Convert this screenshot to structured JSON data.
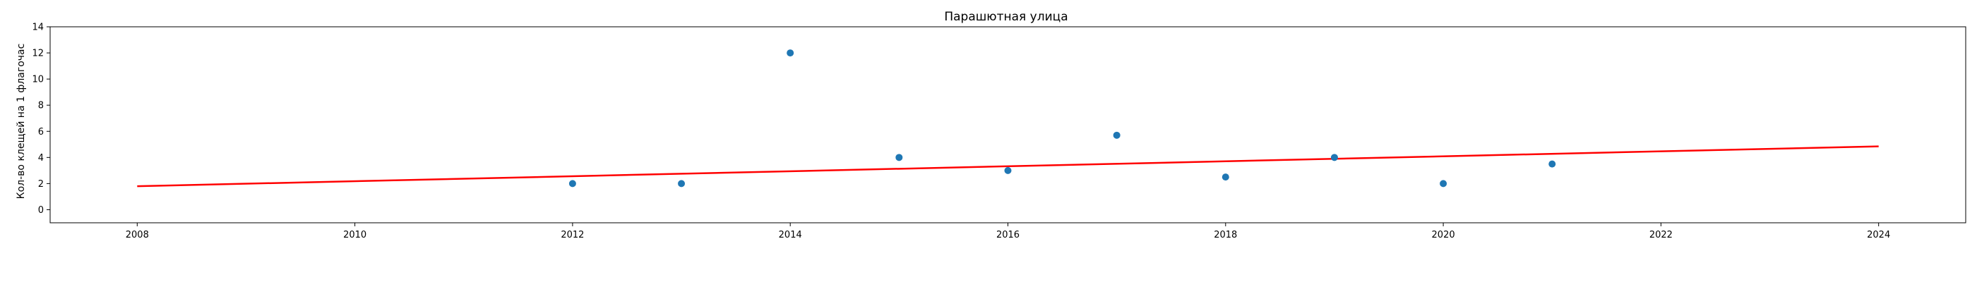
{
  "chart_data": {
    "type": "scatter",
    "title": "Парашютная улица",
    "xlabel": "",
    "ylabel": "Кол-во клещей на 1 флагочас",
    "xlim": [
      2007.2,
      2024.8
    ],
    "ylim": [
      -1,
      14
    ],
    "xticks": [
      2008,
      2010,
      2012,
      2014,
      2016,
      2018,
      2020,
      2022,
      2024
    ],
    "yticks": [
      0,
      2,
      4,
      6,
      8,
      10,
      12,
      14
    ],
    "grid": false,
    "points": {
      "x": [
        2012,
        2013,
        2014,
        2015,
        2016,
        2017,
        2018,
        2019,
        2020,
        2021
      ],
      "y": [
        2,
        2,
        12,
        4,
        3,
        5.7,
        2.5,
        4,
        2,
        3.5
      ],
      "color": "#1f77b4"
    },
    "trend_line": {
      "x": [
        2008,
        2024
      ],
      "y": [
        1.8,
        4.85
      ],
      "color": "#ff0000"
    }
  }
}
